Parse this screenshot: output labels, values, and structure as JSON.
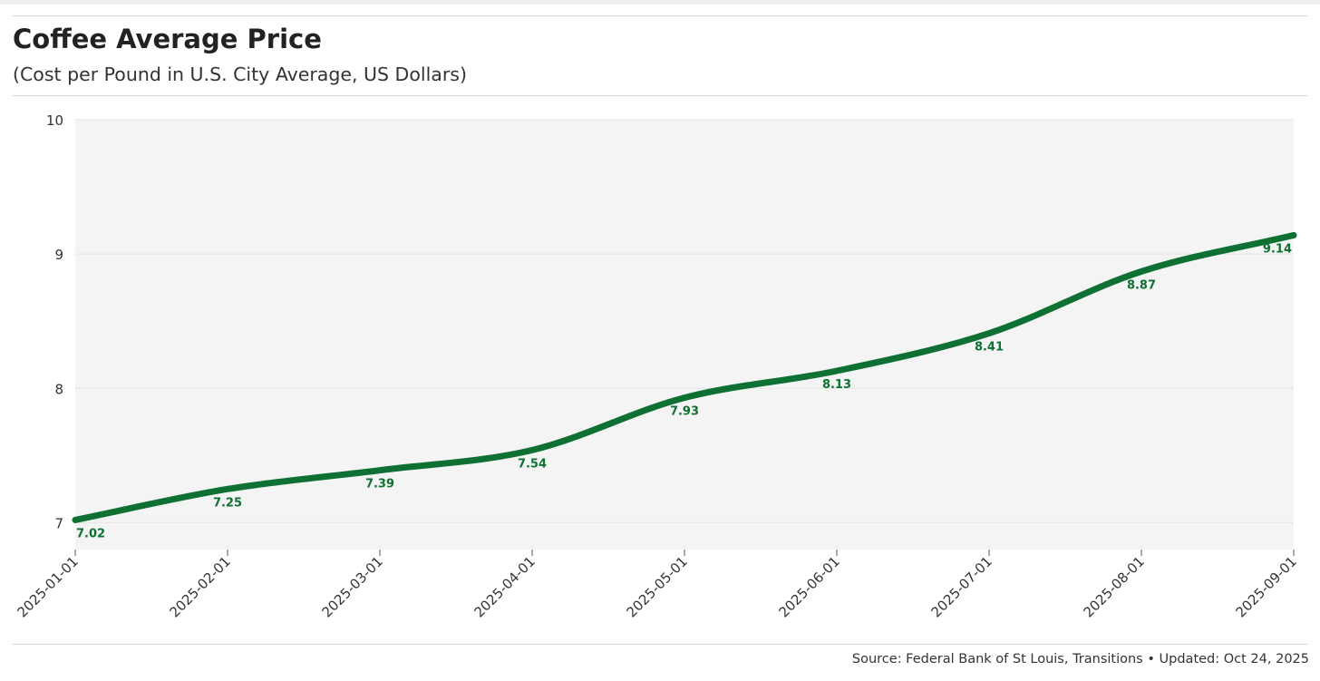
{
  "header": {
    "title": "Coffee Average Price",
    "subtitle": "(Cost per Pound in U.S. City Average, US Dollars)"
  },
  "footer": {
    "source": "Source: Federal Bank of St Louis, Transitions",
    "separator": " • ",
    "updated": "Updated: Oct 24, 2025"
  },
  "colors": {
    "line": "#0e7032",
    "label": "#0e7032",
    "plot_background": "#f4f4f4",
    "grid": "#e4e4e4",
    "axis_text": "#333333"
  },
  "chart_data": {
    "type": "line",
    "title": "Coffee Average Price",
    "subtitle": "(Cost per Pound in U.S. City Average, US Dollars)",
    "xlabel": "",
    "ylabel": "",
    "x": [
      "2025-01-01",
      "2025-02-01",
      "2025-03-01",
      "2025-04-01",
      "2025-05-01",
      "2025-06-01",
      "2025-07-01",
      "2025-08-01",
      "2025-09-01"
    ],
    "series": [
      {
        "values": [
          7.02,
          7.25,
          7.39,
          7.54,
          7.93,
          8.13,
          8.41,
          8.87,
          9.14
        ],
        "labels": [
          "7.02",
          "7.25",
          "7.39",
          "7.54",
          "7.93",
          "8.13",
          "8.41",
          "8.87",
          "9.14"
        ]
      }
    ],
    "ylim": [
      6.8,
      10
    ],
    "yticks": [
      7,
      8,
      9,
      10
    ],
    "ytick_labels": [
      "7",
      "8",
      "9",
      "10"
    ],
    "grid": true,
    "legend": "none",
    "smooth": true
  }
}
